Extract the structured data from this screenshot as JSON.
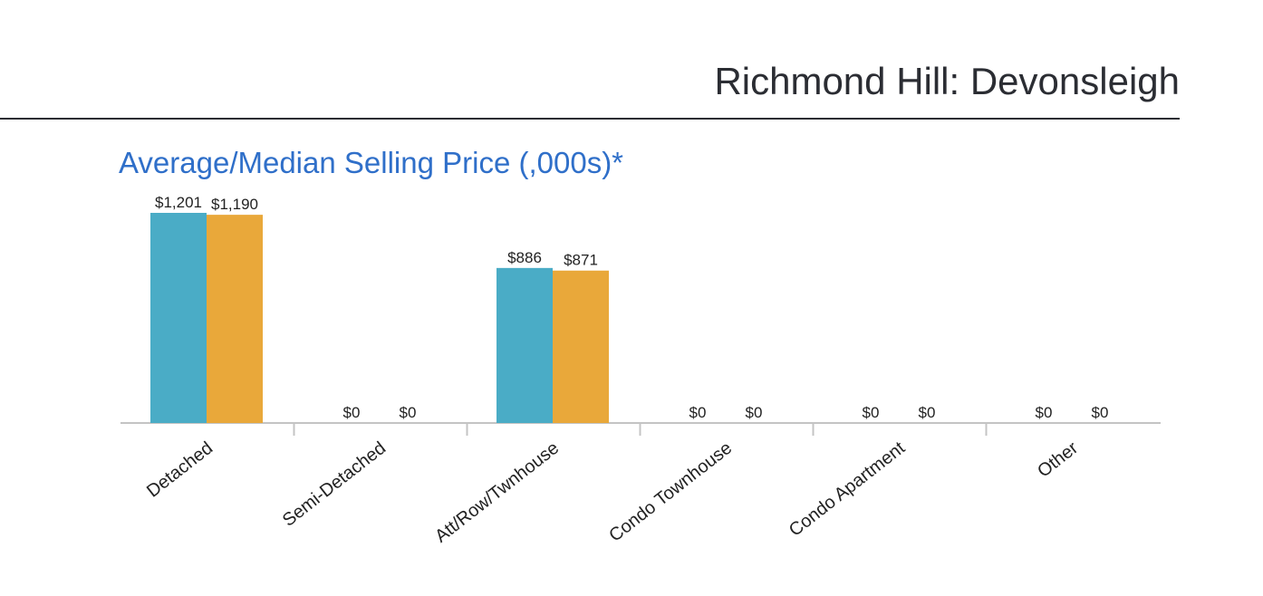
{
  "page_title": "Richmond Hill: Devonsleigh",
  "colors": {
    "average": "#4aacc6",
    "median": "#e9a83a",
    "axis": "#c4c4c4",
    "title": "#2f6fc9"
  },
  "chart_data": {
    "type": "bar",
    "title": "Average/Median Selling Price (,000s)*",
    "xlabel": "",
    "ylabel": "",
    "categories": [
      "Detached",
      "Semi-Detached",
      "Att/Row/Twnhouse",
      "Condo Townhouse",
      "Condo Apartment",
      "Other"
    ],
    "series": [
      {
        "values": [
          1201,
          0,
          886,
          0,
          0,
          0
        ],
        "labels": [
          "$1,201",
          "$0",
          "$886",
          "$0",
          "$0",
          "$0"
        ]
      },
      {
        "values": [
          1190,
          0,
          871,
          0,
          0,
          0
        ],
        "labels": [
          "$1,190",
          "$0",
          "$871",
          "$0",
          "$0",
          "$0"
        ]
      }
    ],
    "ylim": [
      0,
      1300
    ],
    "grid": false,
    "legend": "none"
  }
}
